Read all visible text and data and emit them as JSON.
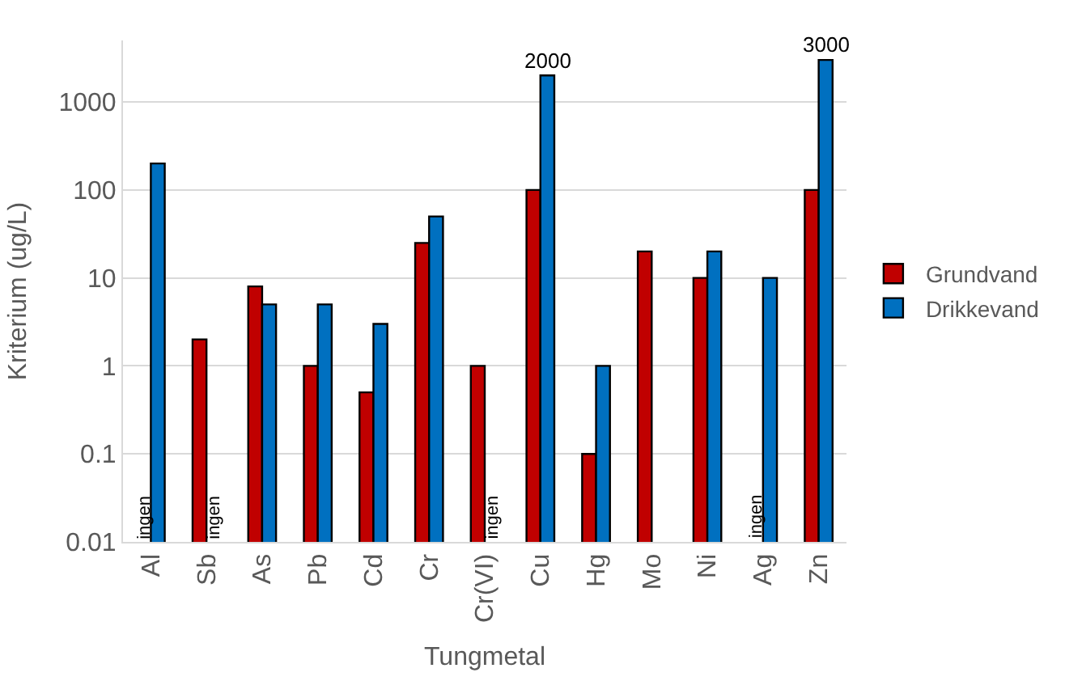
{
  "chart_data": {
    "type": "bar",
    "xlabel": "Tungmetal",
    "ylabel": "Kriterium (ug/L)",
    "categories": [
      "Al",
      "Sb",
      "As",
      "Pb",
      "Cd",
      "Cr",
      "Cr(VI)",
      "Cu",
      "Hg",
      "Mo",
      "Ni",
      "Ag",
      "Zn"
    ],
    "series": [
      {
        "name": "Grundvand",
        "color": "#c00000",
        "values": [
          null,
          2,
          8,
          1,
          0.5,
          25,
          1,
          100,
          0.1,
          20,
          10,
          null,
          100
        ]
      },
      {
        "name": "Drikkevand",
        "color": "#0070c0",
        "values": [
          200,
          null,
          5,
          5,
          3,
          50,
          null,
          2000,
          1,
          null,
          20,
          10,
          3000
        ],
        "value_labels": [
          null,
          null,
          null,
          null,
          null,
          null,
          null,
          "2000",
          null,
          null,
          null,
          null,
          "3000"
        ]
      }
    ],
    "annotations": [
      {
        "text": "ingen",
        "x": "Al",
        "y": 0.01
      },
      {
        "text": "ingen",
        "x": "Sb",
        "y": 0.01
      },
      {
        "text": "ingen",
        "x": "Cr(VI)",
        "y": 0.01
      },
      {
        "text": "ingen",
        "x": "Ag",
        "y": 0.01
      }
    ],
    "log": "y",
    "ylim": [
      0.01,
      5000
    ],
    "yticks": [
      0.01,
      0.1,
      1,
      10,
      100,
      1000
    ],
    "grid": "y",
    "legend": "right"
  }
}
